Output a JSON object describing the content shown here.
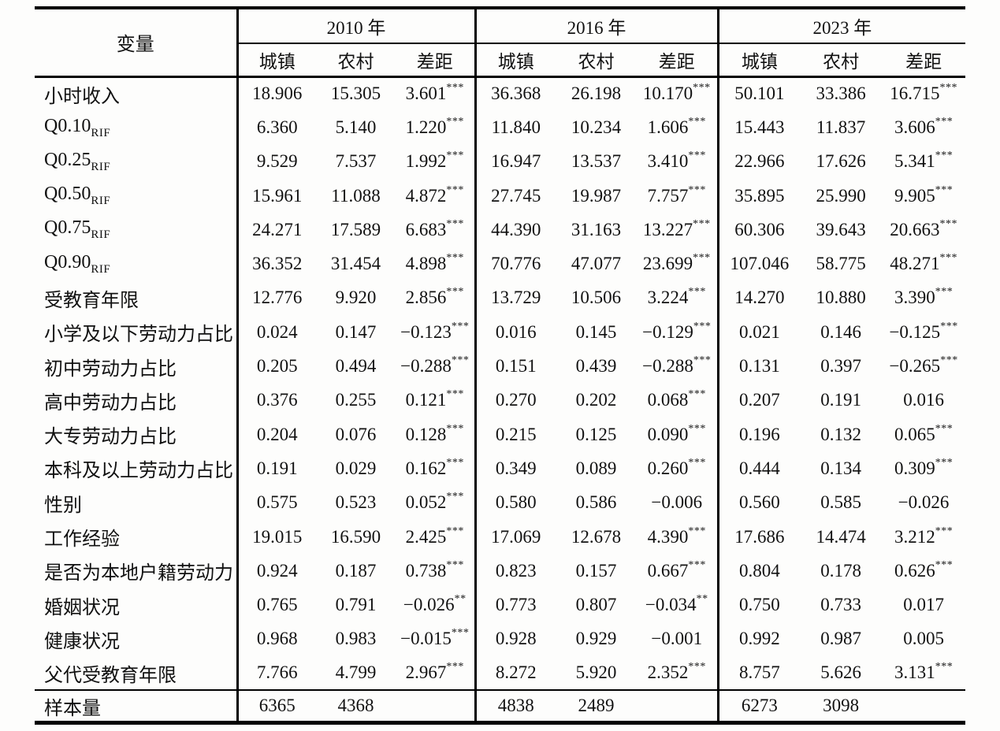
{
  "table": {
    "header": {
      "variable_label": "变量",
      "year_groups": [
        {
          "year": "2010 年",
          "cols": [
            "城镇",
            "农村",
            "差距"
          ]
        },
        {
          "year": "2016 年",
          "cols": [
            "城镇",
            "农村",
            "差距"
          ]
        },
        {
          "year": "2023 年",
          "cols": [
            "城镇",
            "农村",
            "差距"
          ]
        }
      ]
    },
    "rows": [
      {
        "label": "小时收入",
        "sub": "",
        "cells": [
          [
            "18.906",
            ""
          ],
          [
            "15.305",
            ""
          ],
          [
            "3.601",
            "***"
          ],
          [
            "36.368",
            ""
          ],
          [
            "26.198",
            ""
          ],
          [
            "10.170",
            "***"
          ],
          [
            "50.101",
            ""
          ],
          [
            "33.386",
            ""
          ],
          [
            "16.715",
            "***"
          ]
        ]
      },
      {
        "label": "Q0.10",
        "sub": "RIF",
        "cells": [
          [
            "6.360",
            ""
          ],
          [
            "5.140",
            ""
          ],
          [
            "1.220",
            "***"
          ],
          [
            "11.840",
            ""
          ],
          [
            "10.234",
            ""
          ],
          [
            "1.606",
            "***"
          ],
          [
            "15.443",
            ""
          ],
          [
            "11.837",
            ""
          ],
          [
            "3.606",
            "***"
          ]
        ]
      },
      {
        "label": "Q0.25",
        "sub": "RIF",
        "cells": [
          [
            "9.529",
            ""
          ],
          [
            "7.537",
            ""
          ],
          [
            "1.992",
            "***"
          ],
          [
            "16.947",
            ""
          ],
          [
            "13.537",
            ""
          ],
          [
            "3.410",
            "***"
          ],
          [
            "22.966",
            ""
          ],
          [
            "17.626",
            ""
          ],
          [
            "5.341",
            "***"
          ]
        ]
      },
      {
        "label": "Q0.50",
        "sub": "RIF",
        "cells": [
          [
            "15.961",
            ""
          ],
          [
            "11.088",
            ""
          ],
          [
            "4.872",
            "***"
          ],
          [
            "27.745",
            ""
          ],
          [
            "19.987",
            ""
          ],
          [
            "7.757",
            "***"
          ],
          [
            "35.895",
            ""
          ],
          [
            "25.990",
            ""
          ],
          [
            "9.905",
            "***"
          ]
        ]
      },
      {
        "label": "Q0.75",
        "sub": "RIF",
        "cells": [
          [
            "24.271",
            ""
          ],
          [
            "17.589",
            ""
          ],
          [
            "6.683",
            "***"
          ],
          [
            "44.390",
            ""
          ],
          [
            "31.163",
            ""
          ],
          [
            "13.227",
            "***"
          ],
          [
            "60.306",
            ""
          ],
          [
            "39.643",
            ""
          ],
          [
            "20.663",
            "***"
          ]
        ]
      },
      {
        "label": "Q0.90",
        "sub": "RIF",
        "cells": [
          [
            "36.352",
            ""
          ],
          [
            "31.454",
            ""
          ],
          [
            "4.898",
            "***"
          ],
          [
            "70.776",
            ""
          ],
          [
            "47.077",
            ""
          ],
          [
            "23.699",
            "***"
          ],
          [
            "107.046",
            ""
          ],
          [
            "58.775",
            ""
          ],
          [
            "48.271",
            "***"
          ]
        ]
      },
      {
        "label": "受教育年限",
        "sub": "",
        "cells": [
          [
            "12.776",
            ""
          ],
          [
            "9.920",
            ""
          ],
          [
            "2.856",
            "***"
          ],
          [
            "13.729",
            ""
          ],
          [
            "10.506",
            ""
          ],
          [
            "3.224",
            "***"
          ],
          [
            "14.270",
            ""
          ],
          [
            "10.880",
            ""
          ],
          [
            "3.390",
            "***"
          ]
        ]
      },
      {
        "label": "小学及以下劳动力占比",
        "sub": "",
        "cells": [
          [
            "0.024",
            ""
          ],
          [
            "0.147",
            ""
          ],
          [
            "−0.123",
            "***"
          ],
          [
            "0.016",
            ""
          ],
          [
            "0.145",
            ""
          ],
          [
            "−0.129",
            "***"
          ],
          [
            "0.021",
            ""
          ],
          [
            "0.146",
            ""
          ],
          [
            "−0.125",
            "***"
          ]
        ]
      },
      {
        "label": "初中劳动力占比",
        "sub": "",
        "cells": [
          [
            "0.205",
            ""
          ],
          [
            "0.494",
            ""
          ],
          [
            "−0.288",
            "***"
          ],
          [
            "0.151",
            ""
          ],
          [
            "0.439",
            ""
          ],
          [
            "−0.288",
            "***"
          ],
          [
            "0.131",
            ""
          ],
          [
            "0.397",
            ""
          ],
          [
            "−0.265",
            "***"
          ]
        ]
      },
      {
        "label": "高中劳动力占比",
        "sub": "",
        "cells": [
          [
            "0.376",
            ""
          ],
          [
            "0.255",
            ""
          ],
          [
            "0.121",
            "***"
          ],
          [
            "0.270",
            ""
          ],
          [
            "0.202",
            ""
          ],
          [
            "0.068",
            "***"
          ],
          [
            "0.207",
            ""
          ],
          [
            "0.191",
            ""
          ],
          [
            "0.016",
            ""
          ]
        ]
      },
      {
        "label": "大专劳动力占比",
        "sub": "",
        "cells": [
          [
            "0.204",
            ""
          ],
          [
            "0.076",
            ""
          ],
          [
            "0.128",
            "***"
          ],
          [
            "0.215",
            ""
          ],
          [
            "0.125",
            ""
          ],
          [
            "0.090",
            "***"
          ],
          [
            "0.196",
            ""
          ],
          [
            "0.132",
            ""
          ],
          [
            "0.065",
            "***"
          ]
        ]
      },
      {
        "label": "本科及以上劳动力占比",
        "sub": "",
        "cells": [
          [
            "0.191",
            ""
          ],
          [
            "0.029",
            ""
          ],
          [
            "0.162",
            "***"
          ],
          [
            "0.349",
            ""
          ],
          [
            "0.089",
            ""
          ],
          [
            "0.260",
            "***"
          ],
          [
            "0.444",
            ""
          ],
          [
            "0.134",
            ""
          ],
          [
            "0.309",
            "***"
          ]
        ]
      },
      {
        "label": "性别",
        "sub": "",
        "cells": [
          [
            "0.575",
            ""
          ],
          [
            "0.523",
            ""
          ],
          [
            "0.052",
            "***"
          ],
          [
            "0.580",
            ""
          ],
          [
            "0.586",
            ""
          ],
          [
            "−0.006",
            ""
          ],
          [
            "0.560",
            ""
          ],
          [
            "0.585",
            ""
          ],
          [
            "−0.026",
            ""
          ]
        ]
      },
      {
        "label": "工作经验",
        "sub": "",
        "cells": [
          [
            "19.015",
            ""
          ],
          [
            "16.590",
            ""
          ],
          [
            "2.425",
            "***"
          ],
          [
            "17.069",
            ""
          ],
          [
            "12.678",
            ""
          ],
          [
            "4.390",
            "***"
          ],
          [
            "17.686",
            ""
          ],
          [
            "14.474",
            ""
          ],
          [
            "3.212",
            "***"
          ]
        ]
      },
      {
        "label": "是否为本地户籍劳动力",
        "sub": "",
        "cells": [
          [
            "0.924",
            ""
          ],
          [
            "0.187",
            ""
          ],
          [
            "0.738",
            "***"
          ],
          [
            "0.823",
            ""
          ],
          [
            "0.157",
            ""
          ],
          [
            "0.667",
            "***"
          ],
          [
            "0.804",
            ""
          ],
          [
            "0.178",
            ""
          ],
          [
            "0.626",
            "***"
          ]
        ]
      },
      {
        "label": "婚姻状况",
        "sub": "",
        "cells": [
          [
            "0.765",
            ""
          ],
          [
            "0.791",
            ""
          ],
          [
            "−0.026",
            "**"
          ],
          [
            "0.773",
            ""
          ],
          [
            "0.807",
            ""
          ],
          [
            "−0.034",
            "**"
          ],
          [
            "0.750",
            ""
          ],
          [
            "0.733",
            ""
          ],
          [
            "0.017",
            ""
          ]
        ]
      },
      {
        "label": "健康状况",
        "sub": "",
        "cells": [
          [
            "0.968",
            ""
          ],
          [
            "0.983",
            ""
          ],
          [
            "−0.015",
            "***"
          ],
          [
            "0.928",
            ""
          ],
          [
            "0.929",
            ""
          ],
          [
            "−0.001",
            ""
          ],
          [
            "0.992",
            ""
          ],
          [
            "0.987",
            ""
          ],
          [
            "0.005",
            ""
          ]
        ]
      },
      {
        "label": "父代受教育年限",
        "sub": "",
        "cells": [
          [
            "7.766",
            ""
          ],
          [
            "4.799",
            ""
          ],
          [
            "2.967",
            "***"
          ],
          [
            "8.272",
            ""
          ],
          [
            "5.920",
            ""
          ],
          [
            "2.352",
            "***"
          ],
          [
            "8.757",
            ""
          ],
          [
            "5.626",
            ""
          ],
          [
            "3.131",
            "***"
          ]
        ]
      }
    ],
    "footer_row": {
      "label": "样本量",
      "cells": [
        "6365",
        "4368",
        "",
        "4838",
        "2489",
        "",
        "6273",
        "3098",
        ""
      ]
    }
  }
}
